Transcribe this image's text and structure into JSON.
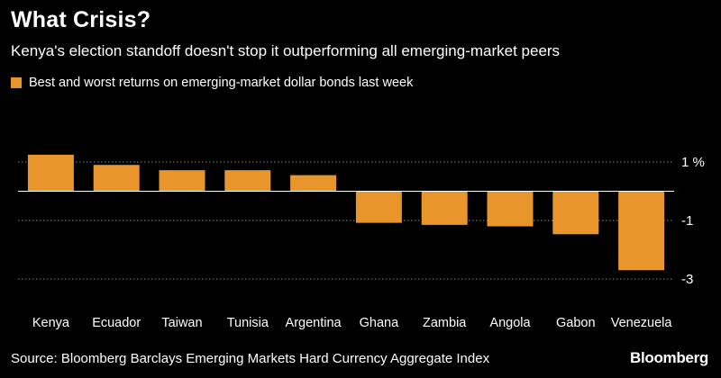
{
  "header": {
    "title": "What Crisis?",
    "subtitle": "Kenya's election standoff doesn't stop it outperforming all emerging-market peers"
  },
  "footer": {
    "source": "Source: Bloomberg Barclays Emerging Markets Hard Currency Aggregate Index",
    "brand": "Bloomberg"
  },
  "colors": {
    "background": "#000000",
    "bar": "#e8952c",
    "gridline": "#8a8a8a",
    "text": "#ffffff"
  },
  "chart_data": {
    "type": "bar",
    "title": "What Crisis?",
    "subtitle": "Kenya's election standoff doesn't stop it outperforming all emerging-market peers",
    "categories": [
      "Kenya",
      "Ecuador",
      "Taiwan",
      "Tunisia",
      "Argentina",
      "Ghana",
      "Zambia",
      "Angola",
      "Gabon",
      "Venezuela"
    ],
    "series": [
      {
        "name": "Best and worst returns on emerging-market dollar bonds last week",
        "values": [
          1.25,
          0.9,
          0.72,
          0.72,
          0.55,
          -1.08,
          -1.15,
          -1.2,
          -1.47,
          -2.7
        ]
      }
    ],
    "ylim": [
      -3,
      1.6
    ],
    "yticks": [
      1,
      -1,
      -3
    ],
    "ytick_labels": [
      "1 %",
      "-1",
      "-3"
    ],
    "gridlines": [
      1,
      -1,
      -3
    ],
    "zero_line": true,
    "y_axis_position": "right",
    "legend_position": "top-left"
  }
}
